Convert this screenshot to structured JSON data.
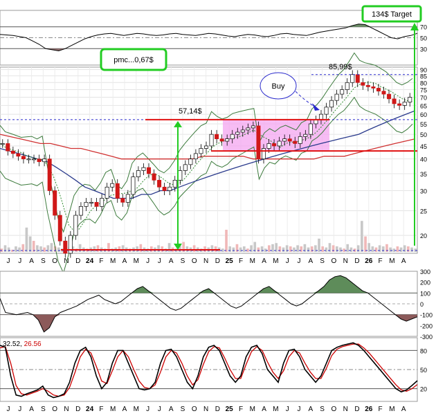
{
  "chart_data": [
    {
      "type": "line",
      "name": "rsi-top-panel",
      "y_ticks": [
        "70",
        "50",
        "30"
      ],
      "levels": [
        70,
        50,
        30
      ],
      "ylim": [
        0,
        100
      ],
      "values": [
        56,
        55,
        54,
        52,
        50,
        44,
        38,
        30,
        28,
        26,
        30,
        36,
        42,
        48,
        52,
        55,
        57,
        58,
        56,
        54,
        56,
        58,
        57,
        55,
        54,
        55,
        57,
        58,
        56,
        55,
        54,
        56,
        58,
        57,
        55,
        53,
        52,
        54,
        56,
        55,
        53,
        52,
        54,
        57,
        58,
        56,
        55,
        54,
        57,
        60,
        62,
        64,
        66,
        68,
        72,
        75,
        74,
        68,
        62,
        56,
        50,
        48,
        52,
        54,
        58
      ],
      "annotation": "134$ Target"
    },
    {
      "type": "line",
      "name": "price-panel",
      "scale": "log",
      "ylim": [
        17,
        92
      ],
      "y_ticks": [
        "90",
        "85",
        "80",
        "75",
        "70",
        "65",
        "60",
        "55",
        "50",
        "45",
        "40",
        "35",
        "30",
        "25",
        "20"
      ],
      "tick_values": [
        90,
        85,
        80,
        75,
        70,
        65,
        60,
        55,
        50,
        45,
        40,
        35,
        30,
        25,
        20
      ],
      "x_ticks": [
        "J",
        "J",
        "A",
        "S",
        "O",
        "N",
        "D",
        "24",
        "F",
        "M",
        "A",
        "M",
        "J",
        "J",
        "A",
        "S",
        "O",
        "N",
        "D",
        "25",
        "F",
        "M",
        "A",
        "M",
        "J",
        "J",
        "A",
        "S",
        "O",
        "N",
        "D",
        "26",
        "F",
        "M",
        "A"
      ],
      "close": [
        46,
        43,
        42,
        41,
        40,
        40,
        40,
        39,
        40,
        30,
        24,
        19,
        17,
        20,
        24,
        26,
        27,
        27,
        26,
        28,
        31,
        32,
        28,
        27,
        29,
        34,
        36,
        37,
        35,
        33,
        31,
        30,
        31,
        33,
        36,
        38,
        40,
        42,
        44,
        45,
        50,
        48,
        47,
        48,
        50,
        51,
        52,
        53,
        54,
        40,
        44,
        46,
        45,
        47,
        48,
        47,
        46,
        49,
        50,
        55,
        57,
        60,
        64,
        68,
        72,
        75,
        80,
        86,
        80,
        78,
        77,
        76,
        74,
        72,
        69,
        66,
        65,
        67,
        70
      ],
      "ma_red": [
        50,
        49,
        48,
        47,
        46,
        46,
        45,
        44,
        44,
        43,
        42,
        41,
        40,
        40,
        40,
        40,
        40,
        40,
        40,
        40,
        41,
        41,
        41,
        41,
        41,
        40,
        40,
        40,
        40,
        40,
        40,
        40,
        41,
        41,
        41,
        42,
        43,
        44,
        45,
        46,
        47,
        48
      ],
      "ma_blue": [
        44,
        43,
        42,
        41,
        40,
        39,
        37,
        35,
        33,
        31,
        30,
        29,
        28,
        28,
        28,
        29,
        29,
        30,
        30,
        31,
        32,
        33,
        34,
        35,
        36,
        37,
        38,
        39,
        40,
        41,
        42,
        43,
        44,
        45,
        46,
        47,
        48,
        49,
        50,
        52,
        54,
        56,
        58,
        60,
        62
      ],
      "levels": [
        {
          "label": "57,14$",
          "value": 57.14
        },
        {
          "label": "85,99$",
          "value": 85.99
        }
      ],
      "annotations": [
        "pmc...0,67$",
        "Buy"
      ]
    },
    {
      "type": "area",
      "name": "momentum-panel",
      "ylim": [
        -300,
        300
      ],
      "y_ticks": [
        "300",
        "200",
        "100",
        "0",
        "-100",
        "-200",
        "-300"
      ],
      "tick_values": [
        300,
        200,
        100,
        0,
        -100,
        -200,
        -300
      ],
      "values": [
        50,
        -80,
        -90,
        -100,
        -90,
        -80,
        -100,
        -150,
        -260,
        -220,
        -120,
        -80,
        -60,
        -40,
        -20,
        10,
        40,
        60,
        80,
        40,
        20,
        0,
        20,
        60,
        100,
        140,
        160,
        120,
        80,
        40,
        0,
        -40,
        -60,
        -40,
        0,
        40,
        80,
        120,
        140,
        100,
        60,
        20,
        -20,
        -40,
        -20,
        20,
        60,
        100,
        140,
        160,
        120,
        80,
        40,
        0,
        -20,
        0,
        40,
        80,
        120,
        160,
        220,
        250,
        260,
        240,
        200,
        160,
        120,
        100,
        60,
        20,
        -20,
        -60,
        -100,
        -140,
        -160,
        -140,
        -120
      ],
      "fill_positive": "#5e8c5a",
      "fill_negative": "#8c5a5a"
    },
    {
      "type": "line",
      "name": "stochastic-panel",
      "title": "32.52, 26.56",
      "title_parts": [
        "32.52, ",
        "26.56"
      ],
      "ylim": [
        0,
        100
      ],
      "y_ticks": [
        "80",
        "50",
        "20"
      ],
      "tick_values": [
        80,
        50,
        20
      ],
      "x_ticks": [
        "J",
        "J",
        "A",
        "S",
        "O",
        "N",
        "D",
        "24",
        "F",
        "M",
        "A",
        "M",
        "J",
        "J",
        "A",
        "S",
        "O",
        "N",
        "D",
        "25",
        "F",
        "M",
        "A",
        "M",
        "J",
        "J",
        "A",
        "S",
        "O",
        "N",
        "D",
        "26",
        "F",
        "M",
        "A"
      ],
      "k": [
        88,
        85,
        40,
        10,
        8,
        12,
        15,
        18,
        24,
        10,
        6,
        8,
        12,
        30,
        60,
        80,
        85,
        70,
        40,
        20,
        30,
        60,
        80,
        80,
        60,
        40,
        20,
        18,
        20,
        30,
        60,
        80,
        82,
        70,
        50,
        30,
        20,
        40,
        70,
        85,
        88,
        80,
        60,
        40,
        30,
        40,
        70,
        85,
        88,
        75,
        50,
        40,
        30,
        60,
        80,
        82,
        70,
        50,
        40,
        30,
        40,
        60,
        80,
        85,
        88,
        90,
        92,
        88,
        80,
        70,
        60,
        50,
        40,
        30,
        20,
        15,
        18,
        25,
        32.52
      ],
      "d": [
        84,
        86,
        60,
        25,
        12,
        10,
        13,
        16,
        20,
        16,
        10,
        8,
        10,
        22,
        45,
        70,
        82,
        76,
        55,
        32,
        28,
        48,
        70,
        80,
        70,
        50,
        32,
        22,
        20,
        26,
        46,
        70,
        80,
        76,
        60,
        40,
        26,
        34,
        58,
        78,
        86,
        84,
        68,
        50,
        36,
        36,
        58,
        78,
        86,
        80,
        62,
        46,
        36,
        48,
        70,
        80,
        76,
        60,
        46,
        36,
        36,
        52,
        72,
        82,
        86,
        88,
        90,
        90,
        84,
        76,
        66,
        56,
        46,
        36,
        26,
        18,
        16,
        20,
        26.56
      ],
      "series_colors": [
        "#000000",
        "#cc0000"
      ]
    }
  ]
}
